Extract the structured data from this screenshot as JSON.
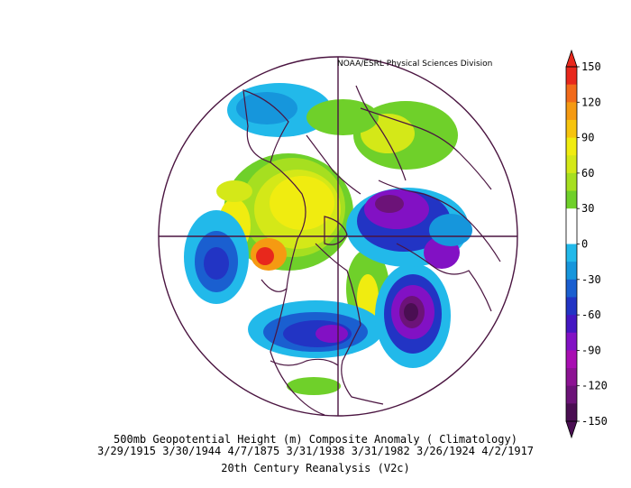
{
  "credit": "NOAA/ESRL Physical Sciences Division",
  "title_line1": "500mb Geopotential Height (m) Composite Anomaly ( Climatology)",
  "title_line2": "3/29/1915 3/30/1944 4/7/1875 3/31/1938 3/31/1982 3/26/1924 4/2/1917",
  "title_line3": "20th Century Reanalysis (V2c)",
  "colorbar": {
    "ticks": [
      "150",
      "120",
      "90",
      "60",
      "30",
      "0",
      "-30",
      "-60",
      "-90",
      "-120",
      "-150"
    ],
    "colors": [
      "#e8281c",
      "#f26a1a",
      "#f59a12",
      "#f6c40e",
      "#f0ec10",
      "#d4e818",
      "#a6df20",
      "#6fd02a",
      "#ffffff",
      "#ffffff",
      "#22b9ea",
      "#1696dc",
      "#1a5fd0",
      "#2234c4",
      "#4417c2",
      "#8211c4",
      "#a80eb2",
      "#8c1393",
      "#6c1378",
      "#4a0e52"
    ]
  },
  "map": {
    "projection": "north-polar-stereographic",
    "field": "500mb geopotential height anomaly"
  }
}
